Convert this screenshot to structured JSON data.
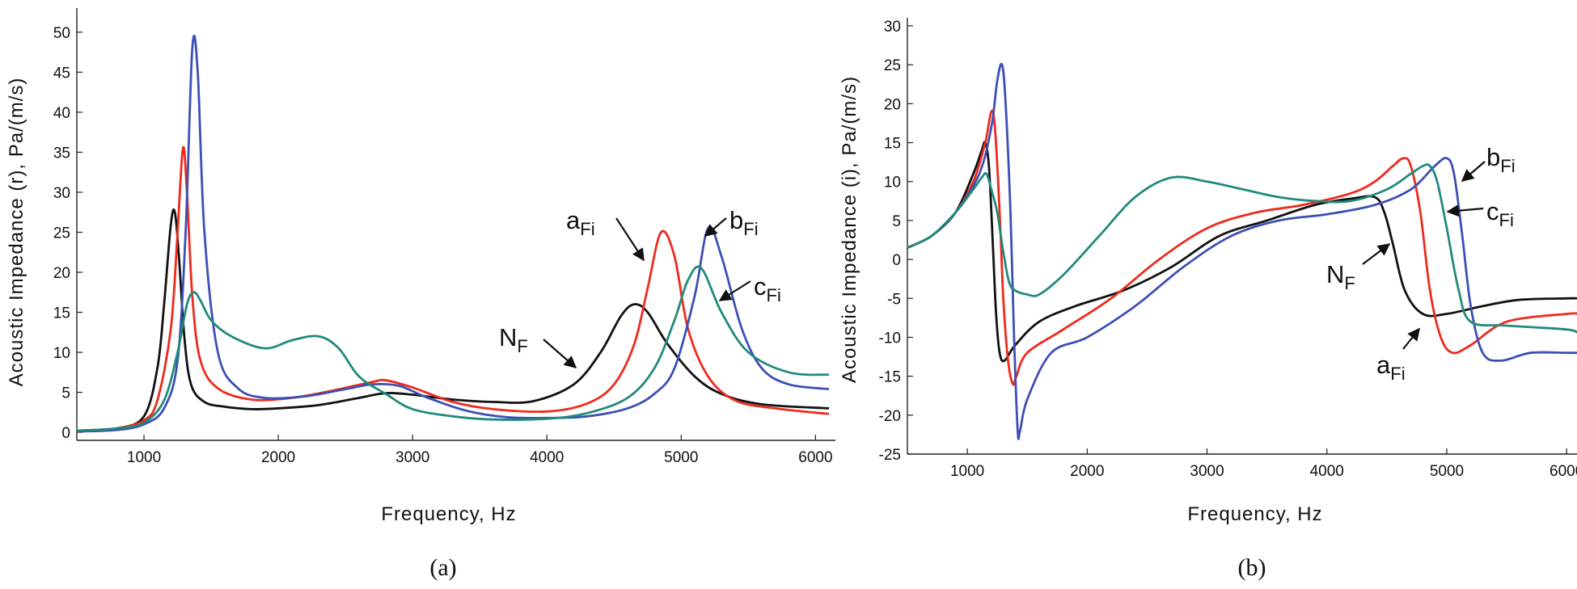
{
  "colors": {
    "N_F": "#111111",
    "a_Fi": "#ee2a1d",
    "b_Fi": "#3d4fb5",
    "c_Fi": "#218a7a"
  },
  "chart_data": [
    {
      "type": "line",
      "panel": "(a)",
      "caption": "(a)",
      "xlabel": "Frequency, Hz",
      "ylabel": "Acoustic Impedance (r), Pa/(m/s)",
      "xlim": [
        500,
        6100
      ],
      "ylim": [
        -1,
        52
      ],
      "xticks": [
        1000,
        2000,
        3000,
        4000,
        5000,
        6000
      ],
      "yticks": [
        0,
        5,
        10,
        15,
        20,
        25,
        30,
        35,
        40,
        45,
        50
      ],
      "xtick_labels": [
        "1000",
        "2000",
        "3000",
        "4000",
        "5000",
        "6000"
      ],
      "ytick_labels": [
        "0",
        "5",
        "10",
        "15",
        "20",
        "25",
        "30",
        "35",
        "40",
        "45",
        "50"
      ],
      "series": [
        {
          "name": "N_F",
          "color": "#111111",
          "x": [
            500,
            800,
            1000,
            1100,
            1150,
            1200,
            1230,
            1260,
            1300,
            1350,
            1450,
            1600,
            1800,
            2000,
            2300,
            2600,
            2800,
            3000,
            3300,
            3600,
            3900,
            4200,
            4400,
            4550,
            4650,
            4750,
            4900,
            5100,
            5300,
            5600,
            6100
          ],
          "y": [
            0.2,
            0.5,
            2,
            8,
            16,
            26,
            27.5,
            22,
            12,
            6,
            3.8,
            3.2,
            2.9,
            3,
            3.4,
            4.3,
            4.9,
            4.7,
            4.1,
            3.8,
            3.9,
            6,
            10,
            14.5,
            16,
            15,
            11,
            7,
            4.8,
            3.5,
            3
          ]
        },
        {
          "name": "a_Fi",
          "color": "#ee2a1d",
          "x": [
            500,
            800,
            1000,
            1100,
            1200,
            1250,
            1290,
            1320,
            1360,
            1420,
            1550,
            1800,
            2100,
            2400,
            2700,
            2800,
            3000,
            3300,
            3600,
            4000,
            4300,
            4500,
            4650,
            4750,
            4850,
            4950,
            5050,
            5200,
            5400,
            5700,
            6100
          ],
          "y": [
            0.2,
            0.5,
            1.5,
            4,
            13,
            25,
            35.5,
            30,
            17,
            9,
            5.5,
            4.1,
            4.3,
            5.2,
            6.3,
            6.5,
            5.6,
            3.8,
            2.9,
            2.6,
            3.6,
            6,
            11,
            18,
            25,
            22,
            13,
            7,
            4,
            3,
            2.3
          ]
        },
        {
          "name": "b_Fi",
          "color": "#3d4fb5",
          "x": [
            500,
            800,
            1000,
            1150,
            1250,
            1310,
            1360,
            1400,
            1450,
            1550,
            1700,
            1900,
            2200,
            2500,
            2700,
            2900,
            3100,
            3400,
            3700,
            4000,
            4300,
            4600,
            4800,
            4950,
            5100,
            5200,
            5300,
            5450,
            5600,
            5800,
            6100
          ],
          "y": [
            0.1,
            0.3,
            1,
            3,
            9,
            25,
            48,
            45,
            25,
            10,
            5.5,
            4.3,
            4.5,
            5.4,
            6,
            5.8,
            4.4,
            2.7,
            1.9,
            1.8,
            2,
            3,
            4.8,
            8,
            17,
            25.5,
            22,
            13,
            8,
            6,
            5.4
          ]
        },
        {
          "name": "c_Fi",
          "color": "#218a7a",
          "x": [
            500,
            800,
            1000,
            1150,
            1250,
            1320,
            1370,
            1420,
            1500,
            1650,
            1900,
            2100,
            2300,
            2450,
            2600,
            2800,
            3000,
            3300,
            3600,
            4000,
            4300,
            4600,
            4800,
            4950,
            5050,
            5150,
            5300,
            5500,
            5800,
            6100
          ],
          "y": [
            0.2,
            0.5,
            1.2,
            4,
            10,
            16,
            17.5,
            16.5,
            14,
            12,
            10.5,
            11.5,
            12,
            10.5,
            7,
            4.8,
            2.9,
            2,
            1.6,
            1.7,
            2.4,
            4.3,
            8,
            14,
            19,
            20.5,
            15,
            10,
            7.5,
            7.2
          ]
        }
      ],
      "annotations": [
        {
          "base": "a",
          "sub": "Fi",
          "points_to": "a_Fi"
        },
        {
          "base": "b",
          "sub": "Fi",
          "points_to": "b_Fi"
        },
        {
          "base": "c",
          "sub": "Fi",
          "points_to": "c_Fi"
        },
        {
          "base": "N",
          "sub": "F",
          "points_to": "N_F"
        }
      ]
    },
    {
      "type": "line",
      "panel": "(b)",
      "caption": "(b)",
      "xlabel": "Frequency, Hz",
      "ylabel": "Acoustic Impedance (i), Pa/(m/s)",
      "xlim": [
        500,
        6100
      ],
      "ylim": [
        -25,
        30
      ],
      "xticks": [
        1000,
        2000,
        3000,
        4000,
        5000,
        6000
      ],
      "yticks": [
        -25,
        -20,
        -15,
        -10,
        -5,
        0,
        5,
        10,
        15,
        20,
        25,
        30
      ],
      "xtick_labels": [
        "1000",
        "2000",
        "3000",
        "4000",
        "5000",
        "6000"
      ],
      "ytick_labels": [
        "-25",
        "-20",
        "-15",
        "-10",
        "-5",
        "0",
        "5",
        "10",
        "15",
        "20",
        "25",
        "30"
      ],
      "series": [
        {
          "name": "N_F",
          "color": "#111111",
          "x": [
            500,
            700,
            900,
            1050,
            1120,
            1150,
            1180,
            1210,
            1240,
            1270,
            1310,
            1400,
            1600,
            1900,
            2300,
            2700,
            3100,
            3500,
            3900,
            4200,
            4400,
            4480,
            4550,
            4650,
            4800,
            5000,
            5300,
            5600,
            6000,
            6100
          ],
          "y": [
            1.5,
            3,
            6,
            11,
            14,
            15,
            12,
            3,
            -7,
            -12,
            -13,
            -11,
            -8,
            -6,
            -4,
            -1,
            3,
            5,
            7,
            7.8,
            8,
            6,
            2,
            -4,
            -7,
            -7,
            -6,
            -5.2,
            -5,
            -5
          ]
        },
        {
          "name": "a_Fi",
          "color": "#ee2a1d",
          "x": [
            500,
            700,
            900,
            1050,
            1150,
            1200,
            1230,
            1270,
            1300,
            1340,
            1380,
            1410,
            1500,
            1800,
            2200,
            2600,
            3000,
            3400,
            3800,
            4200,
            4400,
            4550,
            4640,
            4700,
            4780,
            4860,
            4950,
            5050,
            5200,
            5500,
            6000,
            6100
          ],
          "y": [
            1.5,
            3,
            6,
            10,
            15,
            19,
            17,
            6,
            -5,
            -13,
            -16,
            -15,
            -12,
            -9,
            -5,
            0,
            4,
            6,
            7,
            8.5,
            10,
            12,
            13,
            12,
            6,
            -4,
            -10,
            -12,
            -11,
            -8,
            -7,
            -7
          ]
        },
        {
          "name": "b_Fi",
          "color": "#3d4fb5",
          "x": [
            500,
            700,
            900,
            1100,
            1200,
            1250,
            1290,
            1320,
            1360,
            1390,
            1420,
            1440,
            1500,
            1700,
            2000,
            2400,
            2800,
            3200,
            3600,
            4000,
            4400,
            4700,
            4900,
            5000,
            5060,
            5130,
            5200,
            5300,
            5450,
            5700,
            6000,
            6100
          ],
          "y": [
            1.5,
            3,
            6,
            11,
            17,
            23,
            25,
            20,
            6,
            -10,
            -22,
            -22,
            -18,
            -12,
            -10,
            -6,
            -1,
            3,
            5,
            5.8,
            7,
            9,
            12,
            13,
            11,
            3,
            -6,
            -12,
            -13,
            -12,
            -12,
            -12
          ]
        },
        {
          "name": "c_Fi",
          "color": "#218a7a",
          "x": [
            500,
            700,
            900,
            1050,
            1120,
            1160,
            1200,
            1250,
            1300,
            1350,
            1400,
            1500,
            1600,
            1800,
            2100,
            2400,
            2700,
            3000,
            3300,
            3600,
            3900,
            4200,
            4500,
            4700,
            4800,
            4860,
            4920,
            5000,
            5100,
            5200,
            5500,
            6000,
            6100
          ],
          "y": [
            1.5,
            3,
            6,
            9,
            10.5,
            11,
            9,
            6,
            1,
            -3,
            -4,
            -4.5,
            -4.5,
            -2,
            3,
            8,
            10.5,
            10,
            9,
            8,
            7.5,
            7.5,
            9,
            11,
            12,
            12,
            10,
            4,
            -4,
            -8,
            -8.5,
            -9,
            -9.5
          ]
        }
      ],
      "annotations": [
        {
          "base": "b",
          "sub": "Fi",
          "points_to": "b_Fi"
        },
        {
          "base": "c",
          "sub": "Fi",
          "points_to": "c_Fi"
        },
        {
          "base": "N",
          "sub": "F",
          "points_to": "N_F"
        },
        {
          "base": "a",
          "sub": "Fi",
          "points_to": "a_Fi"
        }
      ]
    }
  ]
}
